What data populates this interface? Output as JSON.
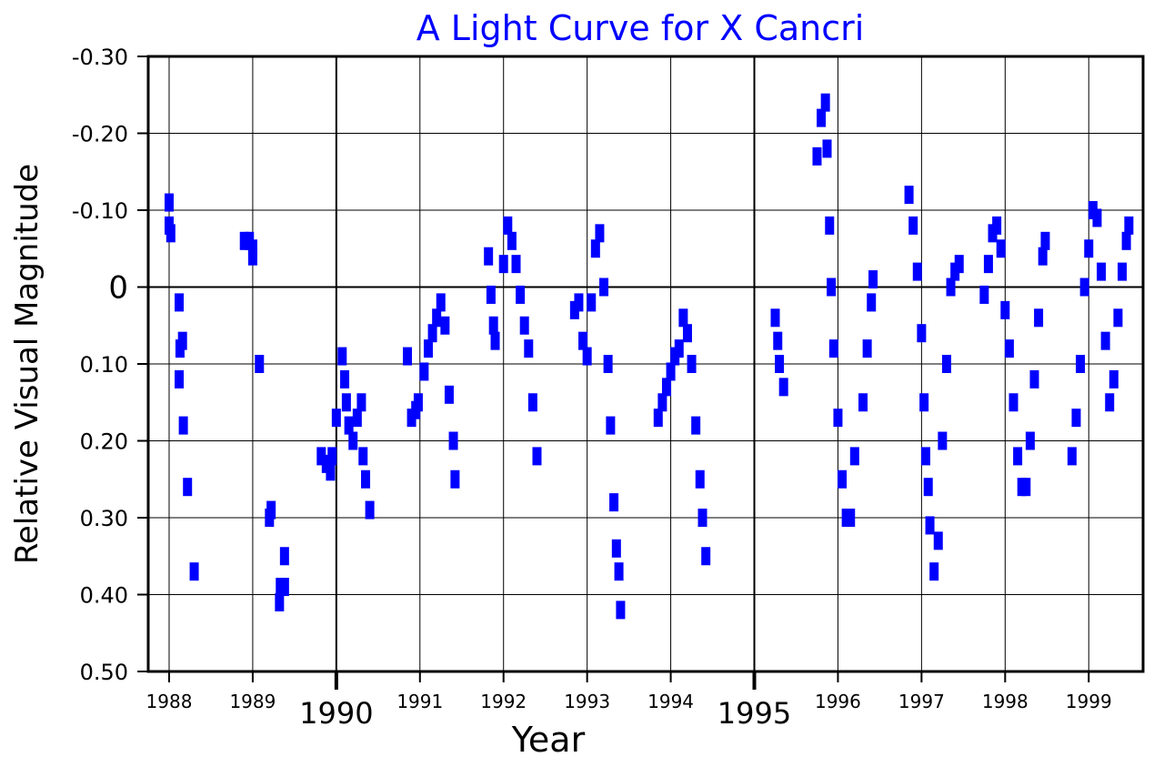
{
  "chart_data": {
    "type": "scatter",
    "title": "A Light Curve for X Cancri",
    "xlabel": "Year",
    "ylabel": "Relative Visual Magnitude",
    "xlim": [
      1987.75,
      1999.65
    ],
    "ylim": [
      0.5,
      -0.3
    ],
    "y_inverted": true,
    "grid": true,
    "colors": {
      "series": "#0000ff",
      "title": "#0000ff",
      "axis": "#000000",
      "grid": "#000000"
    },
    "y_ticks": [
      {
        "value": -0.3,
        "label": "-0.30"
      },
      {
        "value": -0.2,
        "label": "-0.20"
      },
      {
        "value": -0.1,
        "label": "-0.10"
      },
      {
        "value": 0,
        "label": "0"
      },
      {
        "value": 0.1,
        "label": "0.10"
      },
      {
        "value": 0.2,
        "label": "0.20"
      },
      {
        "value": 0.3,
        "label": "0.30"
      },
      {
        "value": 0.4,
        "label": "0.40"
      },
      {
        "value": 0.5,
        "label": "0.50"
      }
    ],
    "x_ticks": [
      {
        "value": 1988,
        "label": "1988",
        "major": false
      },
      {
        "value": 1989,
        "label": "1989",
        "major": false
      },
      {
        "value": 1990,
        "label": "1990",
        "major": true
      },
      {
        "value": 1991,
        "label": "1991",
        "major": false
      },
      {
        "value": 1992,
        "label": "1992",
        "major": false
      },
      {
        "value": 1993,
        "label": "1993",
        "major": false
      },
      {
        "value": 1994,
        "label": "1994",
        "major": false
      },
      {
        "value": 1995,
        "label": "1995",
        "major": true
      },
      {
        "value": 1996,
        "label": "1996",
        "major": false
      },
      {
        "value": 1997,
        "label": "1997",
        "major": false
      },
      {
        "value": 1998,
        "label": "1998",
        "major": false
      },
      {
        "value": 1999,
        "label": "1999",
        "major": false
      }
    ],
    "series": [
      {
        "name": "X Cancri",
        "points": [
          [
            1988.0,
            -0.11
          ],
          [
            1988.0,
            -0.08
          ],
          [
            1988.02,
            -0.07
          ],
          [
            1988.12,
            0.02
          ],
          [
            1988.13,
            0.08
          ],
          [
            1988.16,
            0.07
          ],
          [
            1988.12,
            0.12
          ],
          [
            1988.17,
            0.18
          ],
          [
            1988.22,
            0.26
          ],
          [
            1988.3,
            0.37
          ],
          [
            1988.9,
            -0.06
          ],
          [
            1988.96,
            -0.06
          ],
          [
            1989.0,
            -0.05
          ],
          [
            1989.0,
            -0.04
          ],
          [
            1989.08,
            0.1
          ],
          [
            1989.22,
            0.29
          ],
          [
            1989.2,
            0.3
          ],
          [
            1989.33,
            0.39
          ],
          [
            1989.32,
            0.41
          ],
          [
            1989.38,
            0.39
          ],
          [
            1989.38,
            0.35
          ],
          [
            1989.82,
            0.22
          ],
          [
            1989.88,
            0.23
          ],
          [
            1989.93,
            0.24
          ],
          [
            1989.95,
            0.22
          ],
          [
            1990.0,
            0.17
          ],
          [
            1990.07,
            0.09
          ],
          [
            1990.1,
            0.12
          ],
          [
            1990.12,
            0.15
          ],
          [
            1990.15,
            0.18
          ],
          [
            1990.2,
            0.2
          ],
          [
            1990.25,
            0.17
          ],
          [
            1990.3,
            0.15
          ],
          [
            1990.32,
            0.22
          ],
          [
            1990.35,
            0.25
          ],
          [
            1990.4,
            0.29
          ],
          [
            1990.85,
            0.09
          ],
          [
            1990.9,
            0.17
          ],
          [
            1990.95,
            0.16
          ],
          [
            1990.98,
            0.15
          ],
          [
            1991.05,
            0.11
          ],
          [
            1991.1,
            0.08
          ],
          [
            1991.15,
            0.06
          ],
          [
            1991.2,
            0.04
          ],
          [
            1991.25,
            0.02
          ],
          [
            1991.3,
            0.05
          ],
          [
            1991.35,
            0.14
          ],
          [
            1991.4,
            0.2
          ],
          [
            1991.42,
            0.25
          ],
          [
            1991.82,
            -0.04
          ],
          [
            1991.85,
            0.01
          ],
          [
            1991.88,
            0.05
          ],
          [
            1991.9,
            0.07
          ],
          [
            1992.0,
            -0.03
          ],
          [
            1992.05,
            -0.08
          ],
          [
            1992.1,
            -0.06
          ],
          [
            1992.15,
            -0.03
          ],
          [
            1992.2,
            0.01
          ],
          [
            1992.25,
            0.05
          ],
          [
            1992.3,
            0.08
          ],
          [
            1992.35,
            0.15
          ],
          [
            1992.4,
            0.22
          ],
          [
            1992.85,
            0.03
          ],
          [
            1992.9,
            0.02
          ],
          [
            1992.95,
            0.07
          ],
          [
            1993.0,
            0.09
          ],
          [
            1993.05,
            0.02
          ],
          [
            1993.1,
            -0.05
          ],
          [
            1993.15,
            -0.07
          ],
          [
            1993.2,
            0.0
          ],
          [
            1993.25,
            0.1
          ],
          [
            1993.28,
            0.18
          ],
          [
            1993.32,
            0.28
          ],
          [
            1993.35,
            0.34
          ],
          [
            1993.38,
            0.37
          ],
          [
            1993.4,
            0.42
          ],
          [
            1993.85,
            0.17
          ],
          [
            1993.9,
            0.15
          ],
          [
            1993.95,
            0.13
          ],
          [
            1994.0,
            0.11
          ],
          [
            1994.05,
            0.09
          ],
          [
            1994.1,
            0.08
          ],
          [
            1994.15,
            0.04
          ],
          [
            1994.2,
            0.06
          ],
          [
            1994.25,
            0.1
          ],
          [
            1994.3,
            0.18
          ],
          [
            1994.35,
            0.25
          ],
          [
            1994.38,
            0.3
          ],
          [
            1994.42,
            0.35
          ],
          [
            1995.25,
            0.04
          ],
          [
            1995.28,
            0.07
          ],
          [
            1995.3,
            0.1
          ],
          [
            1995.35,
            0.13
          ],
          [
            1995.75,
            -0.17
          ],
          [
            1995.8,
            -0.22
          ],
          [
            1995.85,
            -0.24
          ],
          [
            1995.87,
            -0.18
          ],
          [
            1995.9,
            -0.08
          ],
          [
            1995.92,
            0.0
          ],
          [
            1995.95,
            0.08
          ],
          [
            1996.0,
            0.17
          ],
          [
            1996.05,
            0.25
          ],
          [
            1996.1,
            0.3
          ],
          [
            1996.15,
            0.3
          ],
          [
            1996.2,
            0.22
          ],
          [
            1996.3,
            0.15
          ],
          [
            1996.35,
            0.08
          ],
          [
            1996.4,
            0.02
          ],
          [
            1996.42,
            -0.01
          ],
          [
            1996.85,
            -0.12
          ],
          [
            1996.9,
            -0.08
          ],
          [
            1996.95,
            -0.02
          ],
          [
            1997.0,
            0.06
          ],
          [
            1997.03,
            0.15
          ],
          [
            1997.05,
            0.22
          ],
          [
            1997.08,
            0.26
          ],
          [
            1997.1,
            0.31
          ],
          [
            1997.15,
            0.37
          ],
          [
            1997.2,
            0.33
          ],
          [
            1997.25,
            0.2
          ],
          [
            1997.3,
            0.1
          ],
          [
            1997.35,
            0.0
          ],
          [
            1997.4,
            -0.02
          ],
          [
            1997.45,
            -0.03
          ],
          [
            1997.75,
            0.01
          ],
          [
            1997.8,
            -0.03
          ],
          [
            1997.85,
            -0.07
          ],
          [
            1997.9,
            -0.08
          ],
          [
            1997.95,
            -0.05
          ],
          [
            1998.0,
            0.03
          ],
          [
            1998.05,
            0.08
          ],
          [
            1998.1,
            0.15
          ],
          [
            1998.15,
            0.22
          ],
          [
            1998.2,
            0.26
          ],
          [
            1998.25,
            0.26
          ],
          [
            1998.3,
            0.2
          ],
          [
            1998.35,
            0.12
          ],
          [
            1998.4,
            0.04
          ],
          [
            1998.45,
            -0.04
          ],
          [
            1998.48,
            -0.06
          ],
          [
            1998.8,
            0.22
          ],
          [
            1998.85,
            0.17
          ],
          [
            1998.9,
            0.1
          ],
          [
            1998.95,
            0.0
          ],
          [
            1999.0,
            -0.05
          ],
          [
            1999.05,
            -0.1
          ],
          [
            1999.1,
            -0.09
          ],
          [
            1999.15,
            -0.02
          ],
          [
            1999.2,
            0.07
          ],
          [
            1999.25,
            0.15
          ],
          [
            1999.3,
            0.12
          ],
          [
            1999.35,
            0.04
          ],
          [
            1999.4,
            -0.02
          ],
          [
            1999.45,
            -0.06
          ],
          [
            1999.48,
            -0.08
          ]
        ]
      }
    ]
  }
}
